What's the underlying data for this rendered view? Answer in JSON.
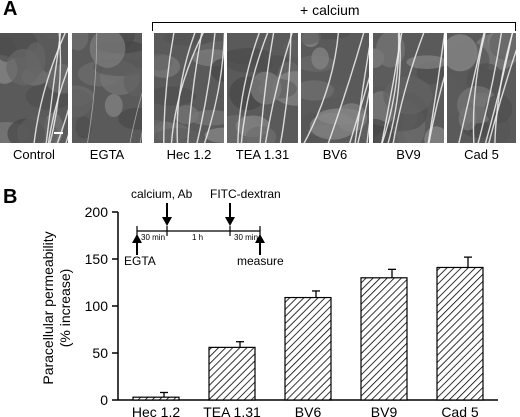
{
  "panel_a": {
    "letter": "A",
    "bracket_label": "+ calcium",
    "micrographs": [
      {
        "label": "Control"
      },
      {
        "label": "EGTA"
      },
      {
        "label": "Hec 1.2"
      },
      {
        "label": "TEA 1.31"
      },
      {
        "label": "BV6"
      },
      {
        "label": "BV9"
      },
      {
        "label": "Cad 5"
      }
    ]
  },
  "panel_b": {
    "letter": "B",
    "protocol": {
      "top_labels": [
        "calcium, Ab",
        "FITC-dextran"
      ],
      "bottom_labels": [
        "EGTA",
        "measure"
      ],
      "intervals": [
        "30 min",
        "1 h",
        "30 min"
      ]
    }
  },
  "chart_data": {
    "type": "bar",
    "categories": [
      "Hec 1.2",
      "TEA 1.31",
      "BV6",
      "BV9",
      "Cad 5"
    ],
    "values": [
      3,
      56,
      109,
      130,
      141
    ],
    "errors": [
      5,
      6,
      7,
      9,
      11
    ],
    "ylabel": "Paracellular permeability\n(% increase)",
    "xlabel": "",
    "ylim": [
      0,
      200
    ],
    "yticks": [
      0,
      50,
      100,
      150,
      200
    ],
    "fill": "hatched",
    "bar_color": "#000000"
  }
}
